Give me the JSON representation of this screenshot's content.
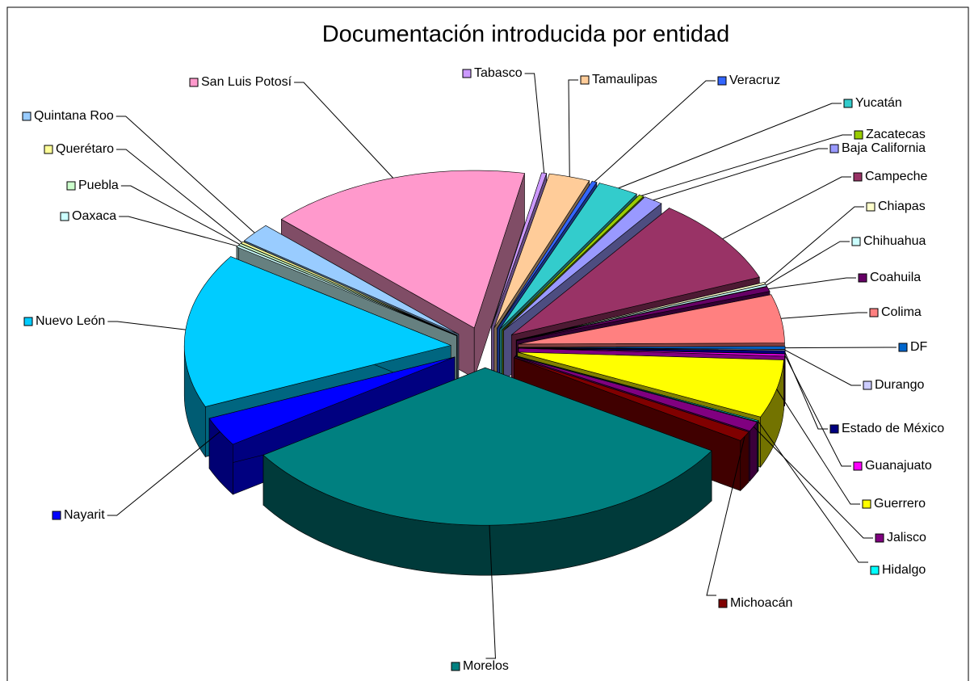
{
  "chart_data": {
    "type": "pie",
    "title": "Documentación introducida por entidad",
    "categories": [
      "Baja California",
      "Campeche",
      "Chiapas",
      "Chihuahua",
      "Coahuila",
      "Colima",
      "DF",
      "Durango",
      "Estado de México",
      "Guanajuato",
      "Guerrero",
      "Hidalgo",
      "Jalisco",
      "Michoacán",
      "Morelos",
      "Nayarit",
      "Nuevo León",
      "Oaxaca",
      "Puebla",
      "Querétaro",
      "Quintana Roo",
      "San Luis Potosí",
      "Tabasco",
      "Tamaulipas",
      "Veracruz",
      "Yucatán",
      "Zacatecas"
    ],
    "values": [
      1.2,
      9,
      0.2,
      0.2,
      0.5,
      5,
      0.3,
      0.1,
      0.3,
      0.2,
      6,
      0.1,
      1,
      1,
      32,
      3,
      16,
      0.2,
      0.2,
      0.2,
      2,
      16,
      0.3,
      2.5,
      0.3,
      2.5,
      0.3
    ],
    "colors": [
      "#9999FF",
      "#993366",
      "#FFFFCC",
      "#CCFFFF",
      "#660066",
      "#FF8080",
      "#0066CC",
      "#CCCCFF",
      "#000080",
      "#FF00FF",
      "#FFFF00",
      "#00FFFF",
      "#800080",
      "#800000",
      "#008080",
      "#0000FF",
      "#00CCFF",
      "#CCFFFF",
      "#CCFFCC",
      "#FFFF99",
      "#99CCFF",
      "#FF99CC",
      "#CC99FF",
      "#FFCC99",
      "#3366FF",
      "#33CCCC",
      "#99CC00"
    ]
  }
}
